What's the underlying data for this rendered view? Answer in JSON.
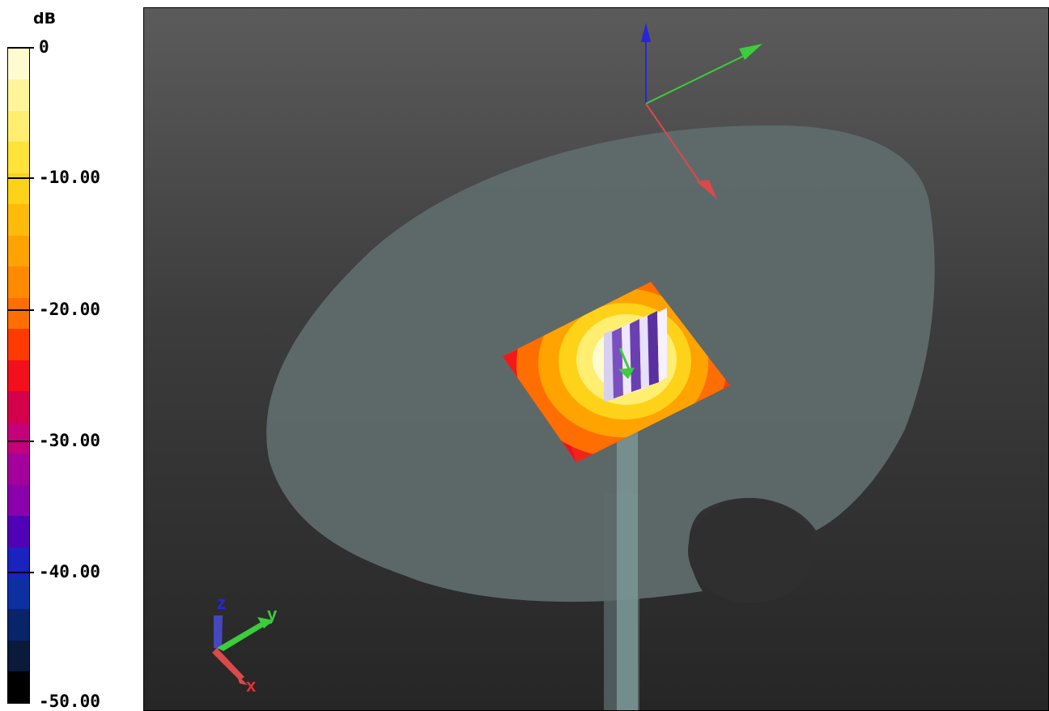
{
  "legend": {
    "unit": "dB",
    "ticks": [
      "0",
      "-10.00",
      "-20.00",
      "-30.00",
      "-40.00",
      "-50.00"
    ],
    "colors": [
      "#fffbd0",
      "#fff59a",
      "#ffee70",
      "#ffe23a",
      "#ffd21a",
      "#ffbb0a",
      "#ffa300",
      "#ff8a00",
      "#ff6e00",
      "#ff3a00",
      "#f2101c",
      "#d4004a",
      "#c4007c",
      "#a4009c",
      "#8a00ac",
      "#5000b6",
      "#1a22c0",
      "#0c30a2",
      "#08256a",
      "#0a1a3a",
      "#000000"
    ]
  },
  "viewport": {
    "background_top": "#5b5b5b",
    "background_bottom": "#262626",
    "ground_plane_color": "#5f6b6b",
    "feed_line_color": "#6f8a8a",
    "axis_colors": {
      "x": "#d94a4a",
      "y": "#3ccc3c",
      "z": "#2626dd"
    },
    "orientation_triad": {
      "x_label": "x",
      "y_label": "y",
      "z_label": "z"
    }
  }
}
